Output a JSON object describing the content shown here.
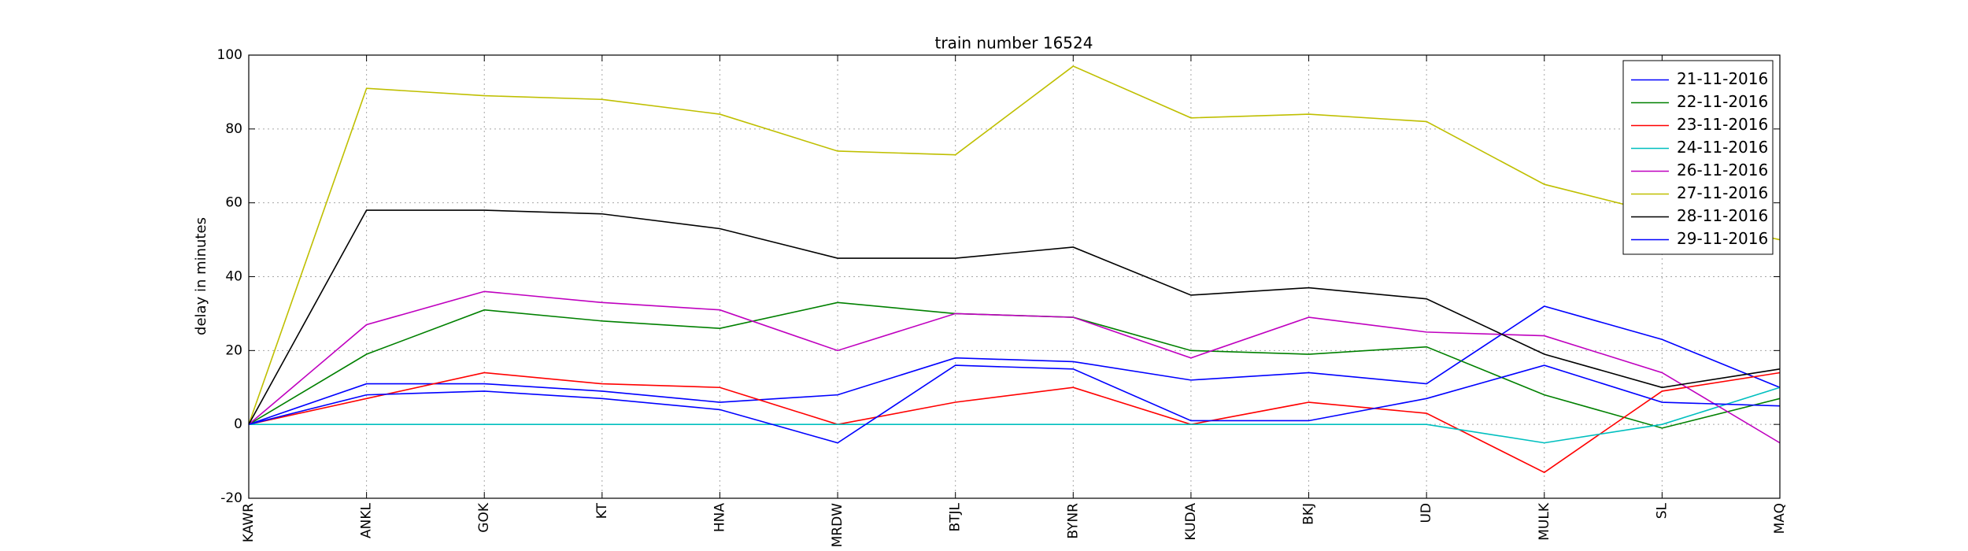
{
  "chart_data": {
    "type": "line",
    "title": "train number 16524",
    "y_label": "delay in minutes",
    "categories": [
      "KAWR",
      "ANKL",
      "GOK",
      "KT",
      "HNA",
      "MRDW",
      "BTJL",
      "BYNR",
      "KUDA",
      "BKJ",
      "UD",
      "MULK",
      "SL",
      "MAQ"
    ],
    "series": [
      {
        "name": "21-11-2016",
        "color": "#0000ff",
        "values": [
          0,
          11,
          11,
          9,
          6,
          8,
          18,
          17,
          12,
          14,
          11,
          32,
          23,
          10
        ]
      },
      {
        "name": "22-11-2016",
        "color": "#008000",
        "values": [
          0,
          19,
          31,
          28,
          26,
          33,
          30,
          29,
          20,
          19,
          21,
          8,
          -1,
          7
        ]
      },
      {
        "name": "23-11-2016",
        "color": "#ff0000",
        "values": [
          0,
          7,
          14,
          11,
          10,
          0,
          6,
          10,
          0,
          6,
          3,
          -13,
          9,
          14
        ]
      },
      {
        "name": "24-11-2016",
        "color": "#00bfbf",
        "values": [
          0,
          0,
          0,
          0,
          0,
          0,
          0,
          0,
          0,
          0,
          0,
          -5,
          0,
          10
        ]
      },
      {
        "name": "26-11-2016",
        "color": "#bf00bf",
        "values": [
          0,
          27,
          36,
          33,
          31,
          20,
          30,
          29,
          18,
          29,
          25,
          24,
          14,
          -5
        ]
      },
      {
        "name": "27-11-2016",
        "color": "#bfbf00",
        "values": [
          0,
          91,
          89,
          88,
          84,
          74,
          73,
          97,
          83,
          84,
          82,
          65,
          57,
          50
        ]
      },
      {
        "name": "28-11-2016",
        "color": "#000000",
        "values": [
          0,
          58,
          58,
          57,
          53,
          45,
          45,
          48,
          35,
          37,
          34,
          19,
          10,
          15
        ]
      },
      {
        "name": "29-11-2016",
        "color": "#0000ff",
        "values": [
          0,
          8,
          9,
          7,
          4,
          -5,
          16,
          15,
          1,
          1,
          7,
          16,
          6,
          5
        ]
      }
    ],
    "ylim": [
      -20,
      100
    ],
    "yticks": [
      -20,
      0,
      20,
      40,
      60,
      80,
      100
    ],
    "grid": true,
    "legend": "upper-right"
  }
}
